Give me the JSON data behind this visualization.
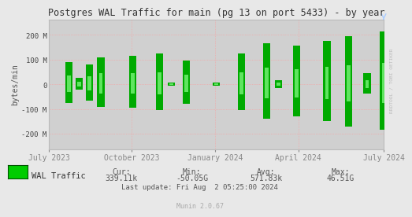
{
  "title": "Postgres WAL Traffic for main (pg 13 on port 5433) - by year",
  "ylabel": "bytes/min",
  "background_color": "#e8e8e8",
  "plot_bg_color": "#d0d0d0",
  "ylim": [
    -262144000,
    262144000
  ],
  "yticks": [
    -200000000,
    -100000000,
    0,
    100000000,
    200000000
  ],
  "ytick_labels": [
    "-200 M",
    "-100 M",
    "0",
    "100 M",
    "200 M"
  ],
  "xtick_labels": [
    "July 2023",
    "October 2023",
    "January 2024",
    "April 2024",
    "July 2024"
  ],
  "xtick_positions": [
    0.0,
    0.247,
    0.496,
    0.745,
    1.0
  ],
  "legend_label": "WAL Traffic",
  "legend_color": "#00cc00",
  "footer_cur_label": "Cur:",
  "footer_cur_val": "339.11k",
  "footer_min_label": "Min:",
  "footer_min_val": "-50.05G",
  "footer_avg_label": "Avg:",
  "footer_avg_val": "571.83k",
  "footer_max_label": "Max:",
  "footer_max_val": "46.51G",
  "footer_last_update": "Last update: Fri Aug  2 05:25:00 2024",
  "footer_munin": "Munin 2.0.67",
  "rrdtool_label": "RRDTOOL / TOBI OETIKER",
  "spike_x": [
    0.06,
    0.09,
    0.12,
    0.155,
    0.25,
    0.33,
    0.365,
    0.41,
    0.5,
    0.575,
    0.65,
    0.685,
    0.74,
    0.83,
    0.895,
    0.95,
    1.0
  ],
  "spike_top": [
    90,
    25,
    80,
    110,
    115,
    125,
    8,
    95,
    8,
    125,
    165,
    18,
    155,
    175,
    195,
    45,
    215
  ],
  "spike_bot": [
    -75,
    -20,
    -65,
    -90,
    -95,
    -105,
    -6,
    -80,
    -6,
    -105,
    -140,
    -14,
    -130,
    -150,
    -170,
    -38,
    -185
  ]
}
